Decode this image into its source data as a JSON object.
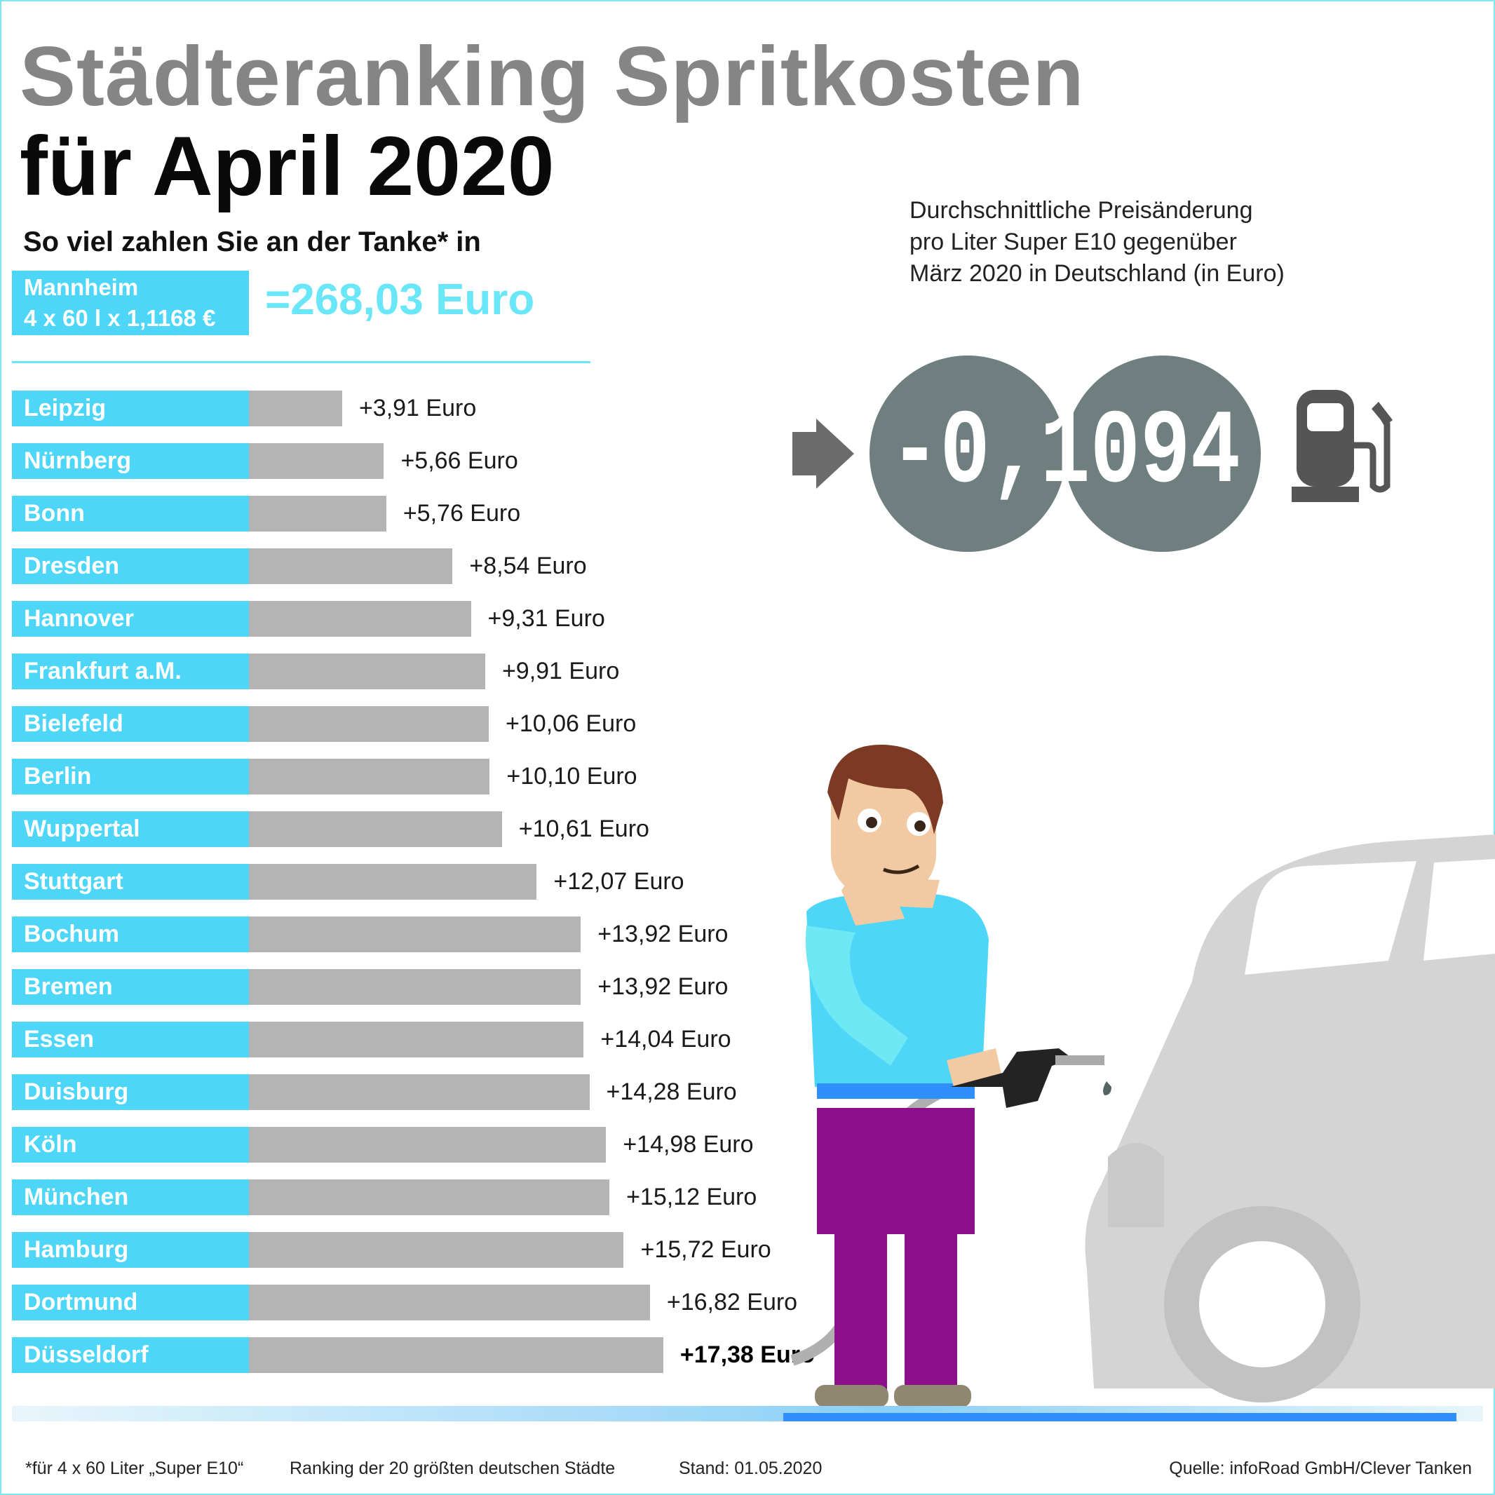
{
  "header": {
    "title_line1": "Städteranking Spritkosten",
    "title_line2": "für April 2020",
    "subtitle": "So viel zahlen Sie an der Tanke* in"
  },
  "reference": {
    "city": "Mannheim",
    "formula": "4 x 60 l x 1,1168 €",
    "total": "=268,03 Euro"
  },
  "info": {
    "lines": [
      "Durchschnittliche Preisänderung",
      "pro Liter Super E10 gegenüber",
      "März 2020 in Deutschland (in Euro)"
    ],
    "value_display": "-0,1094",
    "icon": "fuel-pump-icon",
    "arrow_icon": "arrow-right-icon"
  },
  "chart_data": {
    "type": "bar",
    "orientation": "horizontal",
    "categories": [
      "Leipzig",
      "Nürnberg",
      "Bonn",
      "Dresden",
      "Hannover",
      "Frankfurt a.M.",
      "Bielefeld",
      "Berlin",
      "Wuppertal",
      "Stuttgart",
      "Bochum",
      "Bremen",
      "Essen",
      "Duisburg",
      "Köln",
      "München",
      "Hamburg",
      "Dortmund",
      "Düsseldorf"
    ],
    "values": [
      3.91,
      5.66,
      5.76,
      8.54,
      9.31,
      9.91,
      10.06,
      10.1,
      10.61,
      12.07,
      13.92,
      13.92,
      14.04,
      14.28,
      14.98,
      15.12,
      15.72,
      16.82,
      17.38
    ],
    "value_labels": [
      "+3,91 Euro",
      "+5,66 Euro",
      "+5,76 Euro",
      "+8,54 Euro",
      "+9,31 Euro",
      "+9,91 Euro",
      "+10,06 Euro",
      "+10,10 Euro",
      "+10,61 Euro",
      "+12,07 Euro",
      "+13,92 Euro",
      "+13,92 Euro",
      "+14,04 Euro",
      "+14,28 Euro",
      "+14,98 Euro",
      "+15,12 Euro",
      "+15,72 Euro",
      "+16,82 Euro",
      "+17,38 Euro"
    ],
    "highlight_index": 18,
    "colors": {
      "label_bg": "#4dd6f8",
      "bar": "#b4b4b4",
      "accent": "#69e6f7"
    }
  },
  "footer": {
    "note": "*für 4 x 60 Liter „Super E10“",
    "ranking": "Ranking der 20 größten deutschen Städte",
    "date": "Stand: 01.05.2020",
    "source": "Quelle: infoRoad GmbH/Clever Tanken"
  }
}
